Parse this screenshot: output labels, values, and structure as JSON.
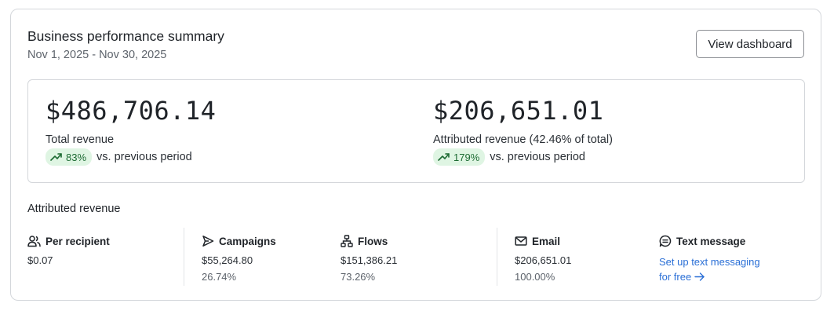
{
  "header": {
    "title": "Business performance summary",
    "date_range": "Nov 1, 2025 - Nov 30, 2025",
    "view_dashboard_label": "View dashboard"
  },
  "kpis": [
    {
      "value": "$486,706.14",
      "label": "Total revenue",
      "change": "83%",
      "change_suffix": "vs. previous period"
    },
    {
      "value": "$206,651.01",
      "label": "Attributed revenue (42.46% of total)",
      "change": "179%",
      "change_suffix": "vs. previous period"
    }
  ],
  "attributed": {
    "title": "Attributed revenue",
    "per_recipient": {
      "label": "Per recipient",
      "value": "$0.07",
      "icon": "users-icon"
    },
    "campaigns": {
      "label": "Campaigns",
      "value": "$55,264.80",
      "percent": "26.74%",
      "icon": "send-icon"
    },
    "flows": {
      "label": "Flows",
      "value": "$151,386.21",
      "percent": "73.26%",
      "icon": "flow-icon"
    },
    "email": {
      "label": "Email",
      "value": "$206,651.01",
      "percent": "100.00%",
      "icon": "envelope-icon"
    },
    "sms": {
      "label": "Text message",
      "link_line1": "Set up text messaging",
      "link_line2": "for free",
      "icon": "chat-icon"
    }
  },
  "colors": {
    "accent_link": "#2a6fd6",
    "positive_bg": "#dff5e3",
    "positive_fg": "#1d6b33"
  }
}
